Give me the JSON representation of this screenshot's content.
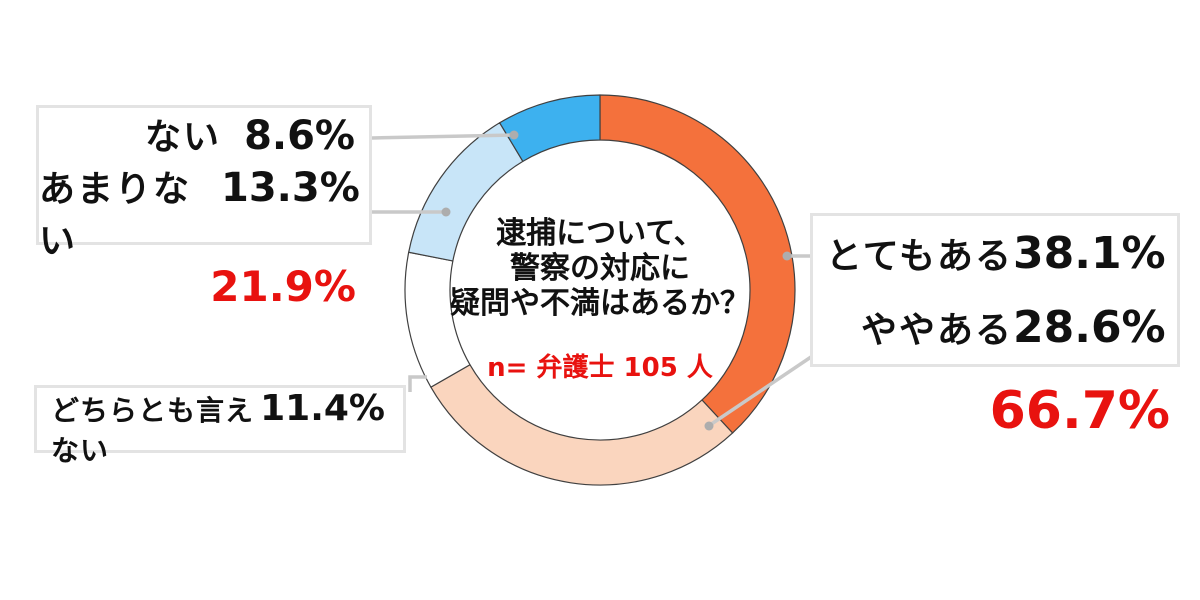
{
  "chart_data": {
    "type": "pie",
    "subtype": "donut",
    "direction": "clockwise",
    "start_angle_deg": 0,
    "center_title_lines": [
      "逮捕について、",
      "警察の対応に",
      "疑問や不満はあるか？"
    ],
    "sample_label": "n= 弁護士 105 人",
    "segments": [
      {
        "label": "とてもある",
        "value_pct": 38.1,
        "display": "38.1%",
        "color": "#F4713C"
      },
      {
        "label": "ややある",
        "value_pct": 28.6,
        "display": "28.6%",
        "color": "#FAD5BE"
      },
      {
        "label": "どちらとも言えない",
        "value_pct": 11.4,
        "display": "11.4%",
        "color": "#FFFFFF"
      },
      {
        "label": "あまりない",
        "value_pct": 13.3,
        "display": "13.3%",
        "color": "#C8E5F8"
      },
      {
        "label": "ない",
        "value_pct": 8.6,
        "display": "8.6%",
        "color": "#3DB1EF"
      }
    ],
    "group_totals": [
      {
        "members": [
          "とてもある",
          "ややある"
        ],
        "display": "66.7%"
      },
      {
        "members": [
          "ない",
          "あまりない"
        ],
        "display": "21.9%"
      }
    ]
  },
  "callouts": {
    "negative_box": {
      "rows": [
        {
          "label": "ない",
          "value": "8.6%"
        },
        {
          "label": "あまりない",
          "value": "13.3%"
        }
      ],
      "sum": "21.9%"
    },
    "neutral_box": {
      "rows": [
        {
          "label": "どちらとも言えない",
          "value": "11.4%"
        }
      ]
    },
    "positive_box": {
      "rows": [
        {
          "label": "とてもある",
          "value": "38.1%"
        },
        {
          "label": "ややある",
          "value": "28.6%"
        }
      ],
      "sum": "66.7%"
    }
  },
  "colors": {
    "accent_red": "#E8120F",
    "orange": "#F4713C",
    "peach": "#FAD5BE",
    "neutral_white": "#FFFFFF",
    "light_blue": "#C8E5F8",
    "blue": "#3DB1EF",
    "segment_outline": "#404040",
    "leader_line": "#C9C9C9",
    "box_border": "#E3E3E3"
  }
}
